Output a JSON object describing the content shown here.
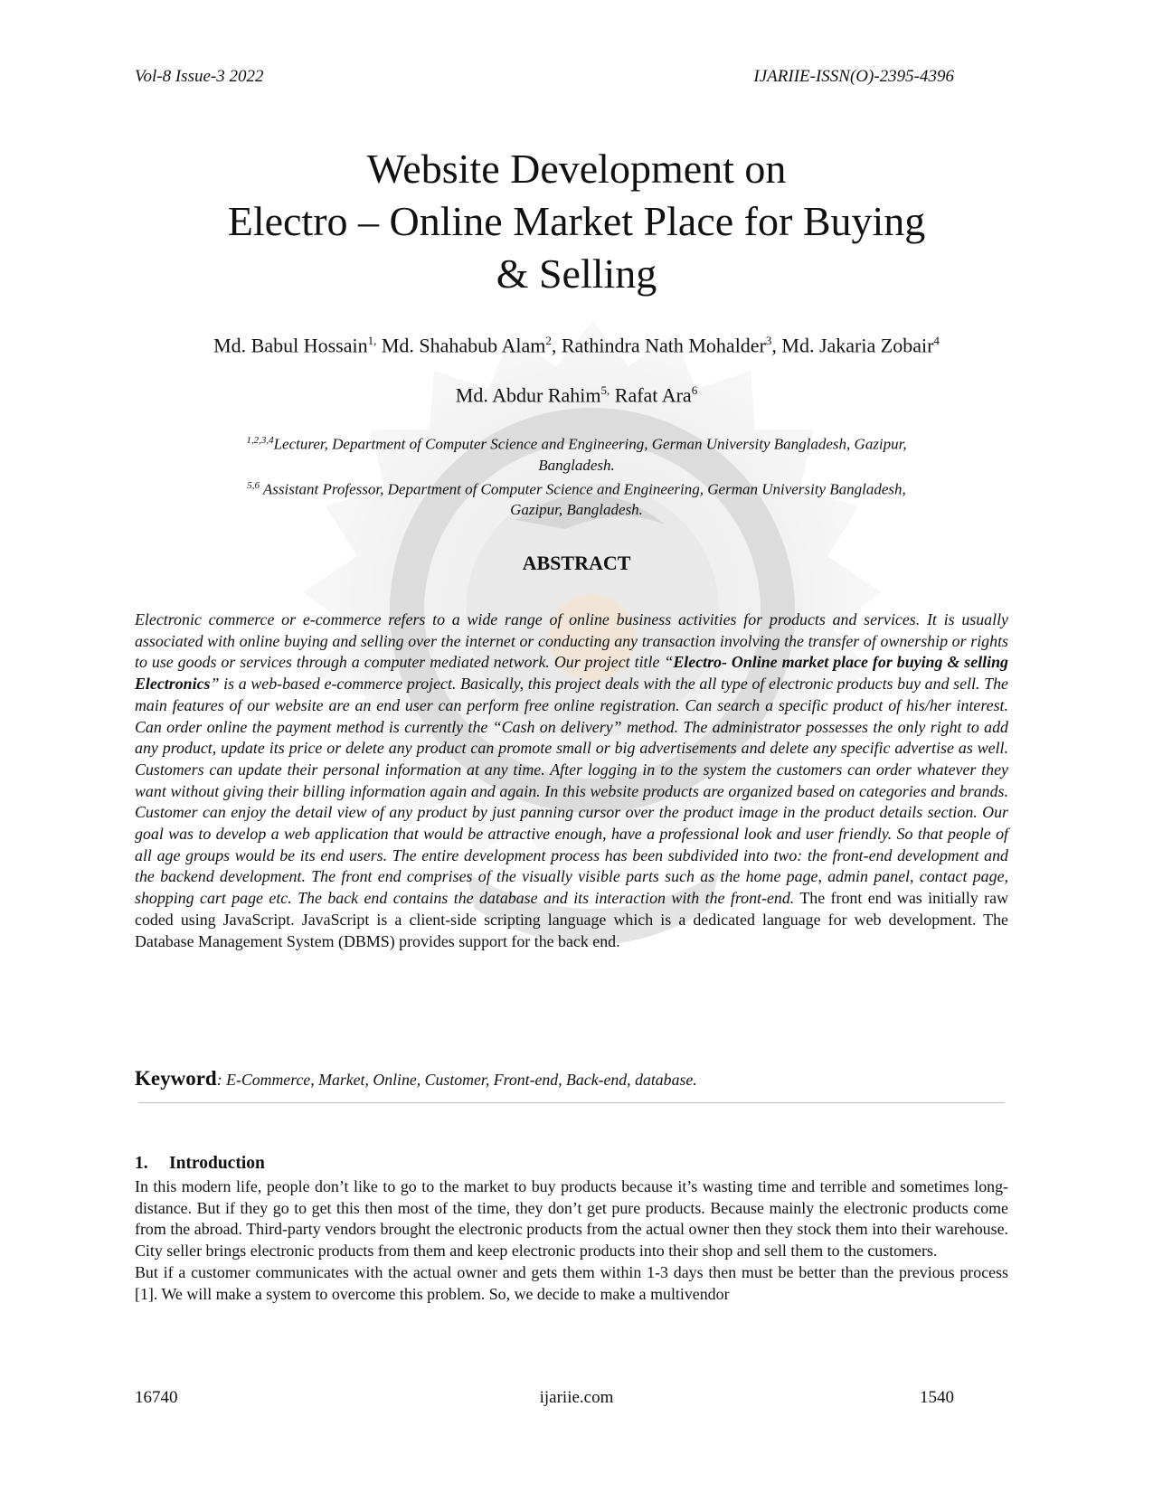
{
  "header": {
    "left": "Vol-8 Issue-3 2022",
    "right": "IJARIIE-ISSN(O)-2395-4396"
  },
  "title": {
    "line1": "Website Development on",
    "line2": "Electro – Online Market Place for Buying",
    "line3": "& Selling"
  },
  "authors": {
    "a1": "Md. Babul Hossain",
    "s1": "1,",
    "a2": " Md. Shahabub Alam",
    "s2": "2",
    "a3": ", Rathindra Nath Mohalder",
    "s3": "3",
    "a4": ", Md. Jakaria Zobair",
    "s4": "4",
    "a5": "Md. Abdur Rahim",
    "s5": "5,",
    "a6": " Rafat Ara",
    "s6": "6"
  },
  "affiliations": {
    "sup1": "1,2,3,4",
    "text1a": "Lecturer, Department of Computer Science and Engineering, German University Bangladesh, Gazipur,",
    "text1b": "Bangladesh.",
    "sup2": "5,6",
    "text2a": " Assistant Professor, Department of Computer Science and Engineering, German University Bangladesh,",
    "text2b": "Gazipur, Bangladesh."
  },
  "abstract": {
    "heading": "ABSTRACT",
    "part1": "Electronic commerce or e-commerce refers to a wide range of online business activities for products and services. It is usually associated with online buying and selling over the internet or conducting any transaction involving the transfer of ownership or rights to use goods or services through a computer mediated network. Our project title “",
    "bold": "Electro- Online market place for buying & selling Electronics",
    "part2": "” is a web-based e-commerce project. Basically, this project deals with the all type of electronic products buy and sell. The main features of our website are an end user can perform free online registration. Can search a specific product of his/her interest. Can order online the payment method is currently the “Cash on delivery” method. The administrator possesses the only right to add any product, update its price or delete any product can promote small or big advertisements and delete any specific advertise as well. Customers can update their personal information at any time. After logging in to the system the customers can order whatever they want without giving their billing information again and again. In this website products are organized based on categories and brands. Customer can enjoy the detail view of any product by just panning cursor over the product image in the product details section. Our goal was to develop a web application that would be attractive enough, have a professional look and user friendly. So that people of all age groups would be its end users. The entire development process has been subdivided into two: the front-end development and the backend development. The front end comprises of the visually visible parts such as the home page, admin panel, contact page, shopping cart page etc. The back end contains the database and its interaction with the front-end.",
    "part3": " The front end was initially raw coded using JavaScript. JavaScript is a client-side scripting language which is a dedicated language for web development. The Database Management System (DBMS) provides support for the back end."
  },
  "keyword": {
    "label": "Keyword",
    "text": ": E-Commerce, Market, Online, Customer, Front-end, Back-end, database."
  },
  "introduction": {
    "number": "1.",
    "heading": "Introduction",
    "para1": "In this modern life, people don’t like to go to the market to buy products because it’s wasting time and terrible and sometimes long-distance. But if they go to get this then most of the time, they don’t get pure products. Because mainly the electronic products come from the abroad. Third-party vendors brought the electronic products from the actual owner then they stock them into their warehouse. City seller brings electronic products from them and keep electronic products into their shop and sell them to the customers.",
    "para2": "But if a customer communicates with the actual owner and gets them within 1-3 days then must be better than the previous process [1]. We will make a system to overcome this problem. So, we decide to make a multivendor"
  },
  "footer": {
    "left": "16740",
    "center": "ijariie.com",
    "right": "1540"
  }
}
